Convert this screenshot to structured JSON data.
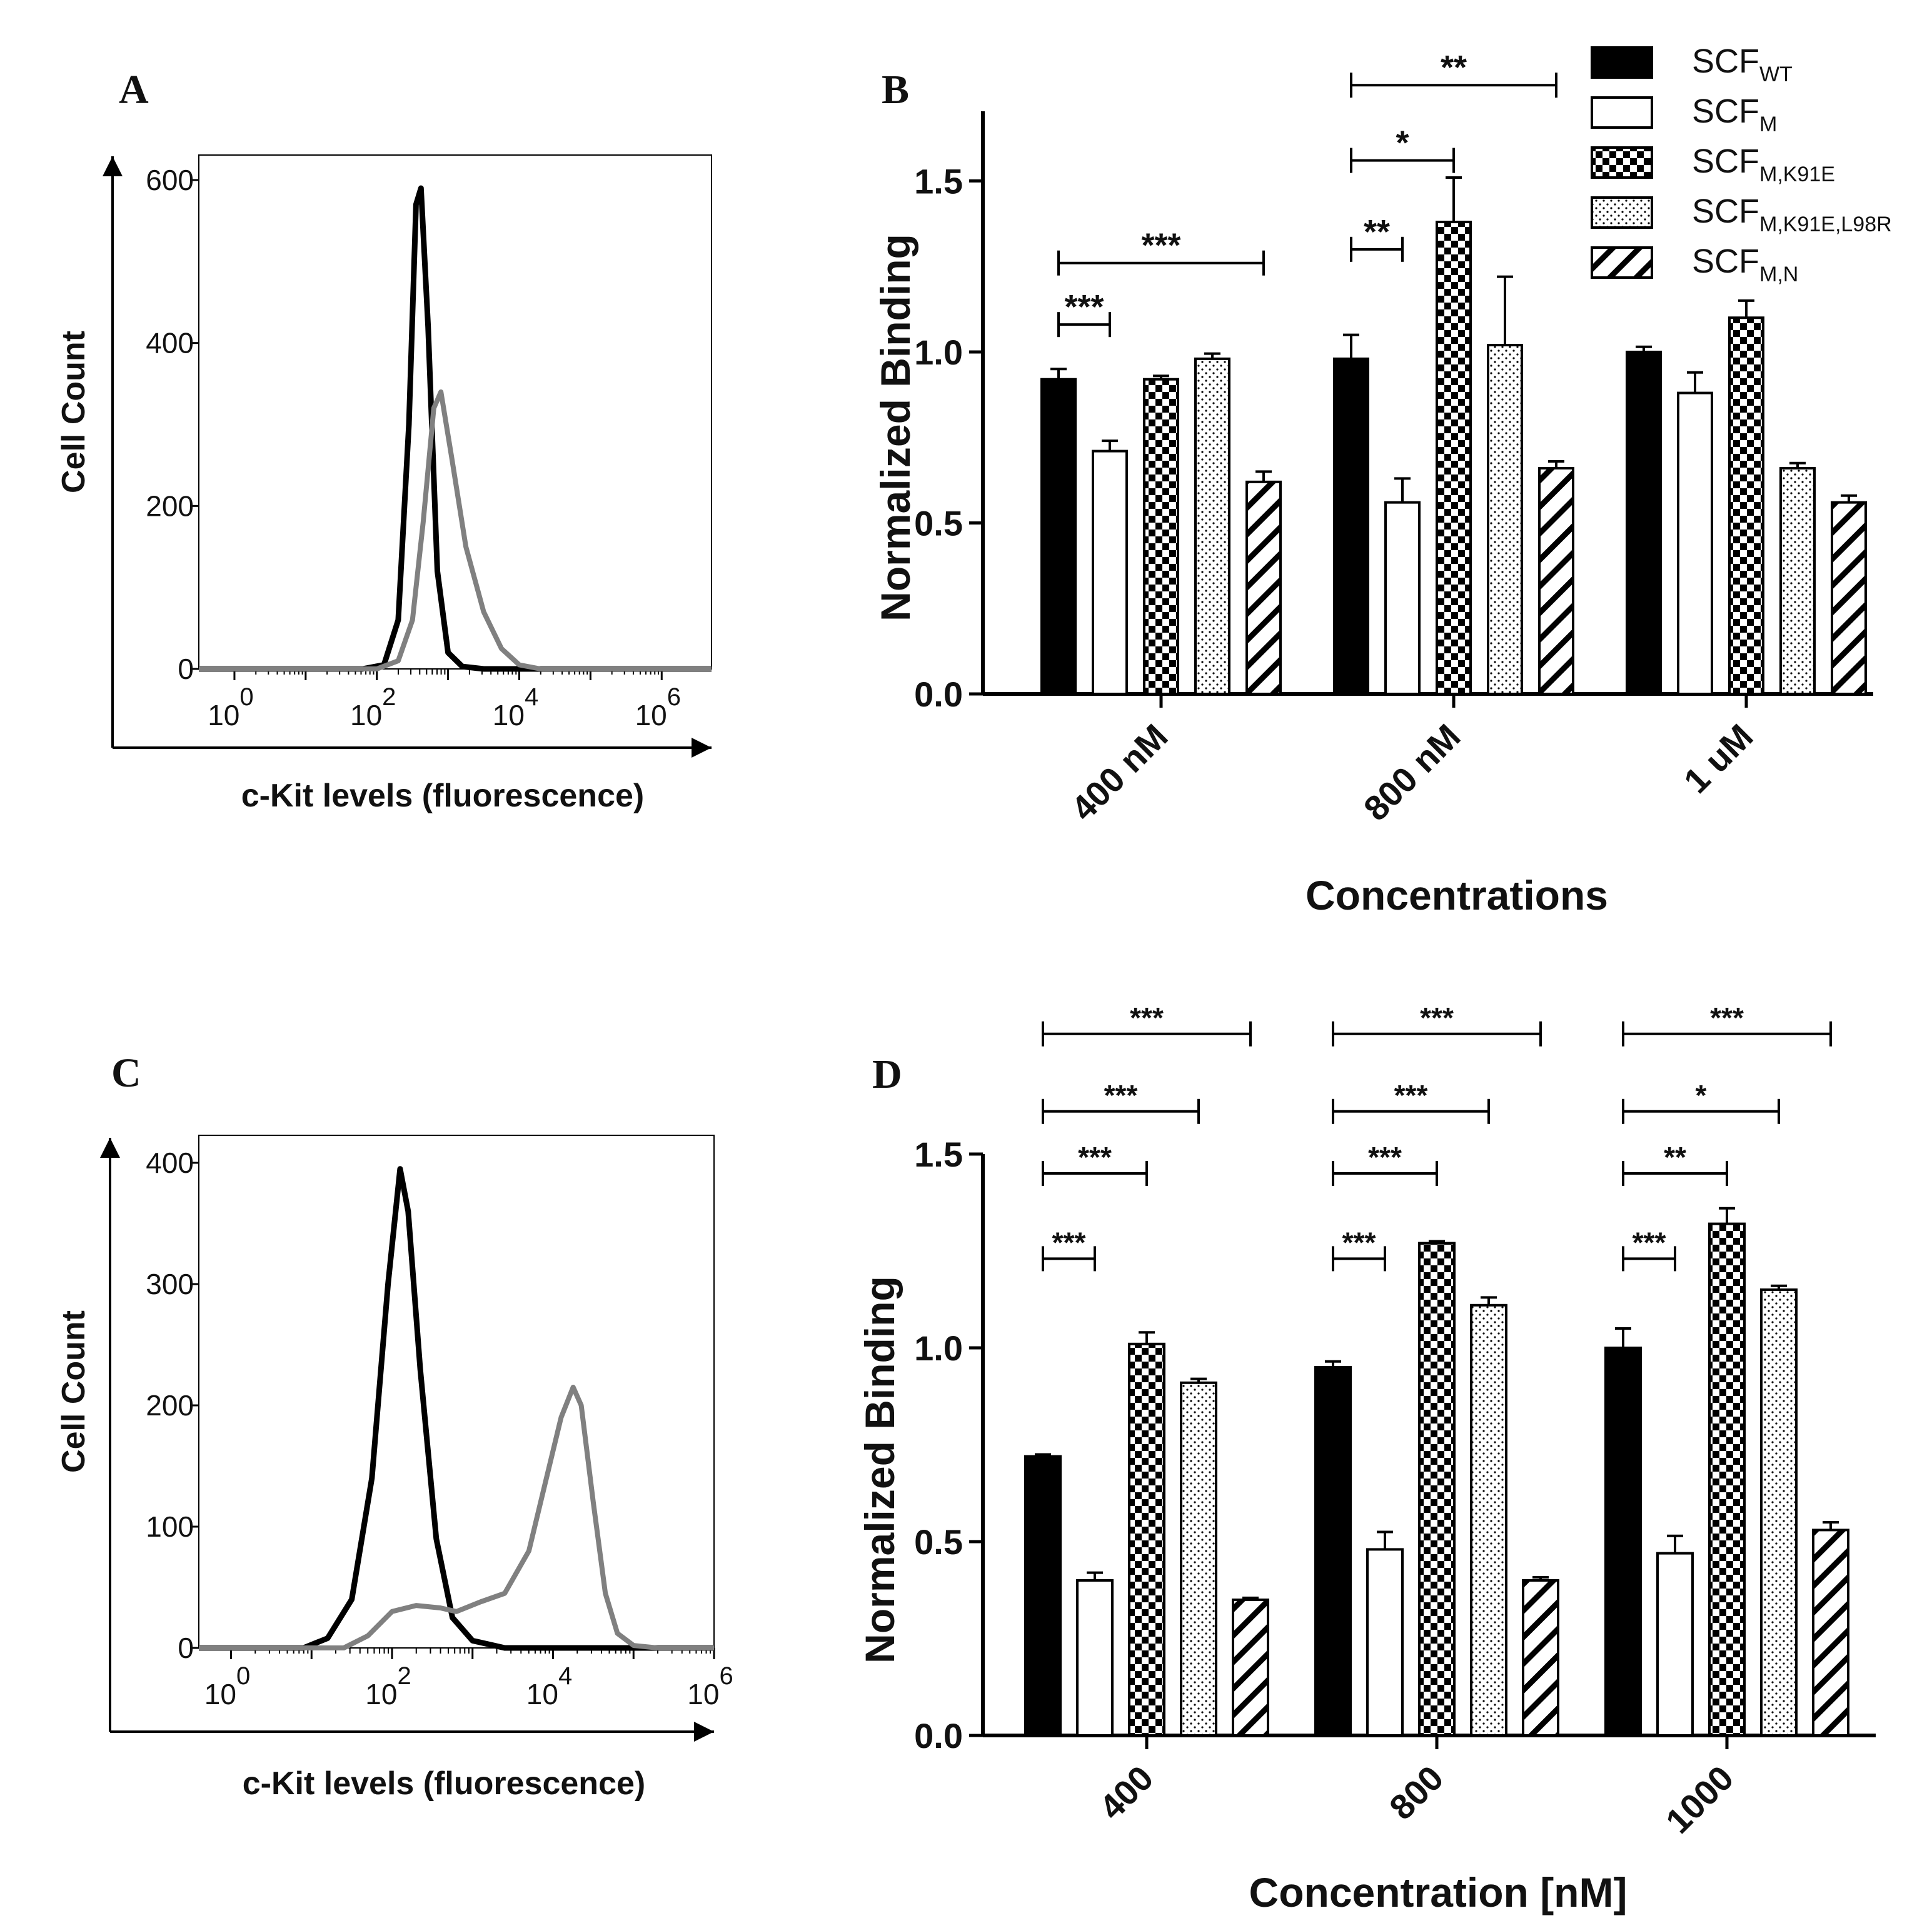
{
  "chart_data": [
    {
      "panel": "A",
      "type": "histogram",
      "xlabel": "c-Kit levels (fluorescence)",
      "ylabel": "Cell Count",
      "yticks": [
        0,
        200,
        400,
        600
      ],
      "ylim": [
        0,
        600
      ],
      "xticks": [
        {
          "base": "10",
          "exp": "0"
        },
        {
          "base": "10",
          "exp": "2"
        },
        {
          "base": "10",
          "exp": "4"
        },
        {
          "base": "10",
          "exp": "6"
        }
      ],
      "xlim_log10": [
        -0.5,
        6.7
      ],
      "series": [
        {
          "name": "black",
          "color": "#000000",
          "points": [
            [
              -0.5,
              0
            ],
            [
              1.8,
              0
            ],
            [
              2.1,
              5
            ],
            [
              2.3,
              60
            ],
            [
              2.45,
              300
            ],
            [
              2.55,
              570
            ],
            [
              2.62,
              590
            ],
            [
              2.72,
              420
            ],
            [
              2.85,
              120
            ],
            [
              3.0,
              20
            ],
            [
              3.2,
              3
            ],
            [
              3.5,
              0
            ],
            [
              6.7,
              0
            ]
          ]
        },
        {
          "name": "gray",
          "color": "#808080",
          "points": [
            [
              -0.5,
              0
            ],
            [
              2.0,
              0
            ],
            [
              2.3,
              10
            ],
            [
              2.5,
              60
            ],
            [
              2.65,
              180
            ],
            [
              2.8,
              320
            ],
            [
              2.9,
              340
            ],
            [
              3.05,
              260
            ],
            [
              3.25,
              150
            ],
            [
              3.5,
              70
            ],
            [
              3.75,
              25
            ],
            [
              4.0,
              5
            ],
            [
              4.3,
              0
            ],
            [
              6.7,
              0
            ]
          ]
        }
      ]
    },
    {
      "panel": "B",
      "type": "bar",
      "title": "",
      "xlabel": "Concentrations",
      "ylabel": "Normalized Binding",
      "ylim": [
        0,
        1.7
      ],
      "yticks": [
        "0.0",
        "0.5",
        "1.0",
        "1.5"
      ],
      "categories": [
        "400 nM",
        "800 nM",
        "1 uM"
      ],
      "series": [
        {
          "name": "SCF_WT",
          "pattern": "solid",
          "values": [
            0.92,
            0.98,
            1.0
          ],
          "errors": [
            0.03,
            0.07,
            0.015
          ]
        },
        {
          "name": "SCF_M",
          "pattern": "white",
          "values": [
            0.71,
            0.56,
            0.88
          ],
          "errors": [
            0.03,
            0.07,
            0.06
          ]
        },
        {
          "name": "SCF_M,K91E",
          "pattern": "checker",
          "values": [
            0.92,
            1.38,
            1.1
          ],
          "errors": [
            0.01,
            0.13,
            0.05
          ]
        },
        {
          "name": "SCF_M,K91E,L98R",
          "pattern": "dots",
          "values": [
            0.98,
            1.02,
            0.66
          ],
          "errors": [
            0.015,
            0.2,
            0.015
          ]
        },
        {
          "name": "SCF_M,N",
          "pattern": "hatch",
          "values": [
            0.62,
            0.66,
            0.56
          ],
          "errors": [
            0.03,
            0.02,
            0.02
          ]
        }
      ],
      "legend": [
        {
          "base": "SCF",
          "sub": "WT",
          "pattern": "solid"
        },
        {
          "base": "SCF",
          "sub": "M",
          "pattern": "white"
        },
        {
          "base": "SCF",
          "sub": "M,K91E",
          "pattern": "checker"
        },
        {
          "base": "SCF",
          "sub": "M,K91E,L98R",
          "pattern": "dots"
        },
        {
          "base": "SCF",
          "sub": "M,N",
          "pattern": "hatch"
        }
      ],
      "significance": [
        {
          "category": 0,
          "from": 0,
          "to": 1,
          "label": "***",
          "level": 1.08
        },
        {
          "category": 0,
          "from": 0,
          "to": 4,
          "label": "***",
          "level": 1.26
        },
        {
          "category": 1,
          "from": 0,
          "to": 1,
          "label": "**",
          "level": 1.3
        },
        {
          "category": 1,
          "from": 0,
          "to": 2,
          "label": "*",
          "level": 1.56
        },
        {
          "category": 1,
          "from": 0,
          "to": 4,
          "label": "**",
          "level": 1.78
        }
      ]
    },
    {
      "panel": "C",
      "type": "histogram",
      "xlabel": "c-Kit levels (fluorescence)",
      "ylabel": "Cell Count",
      "yticks": [
        0,
        100,
        200,
        300,
        400
      ],
      "ylim": [
        0,
        400
      ],
      "xticks": [
        {
          "base": "10",
          "exp": "0"
        },
        {
          "base": "10",
          "exp": "2"
        },
        {
          "base": "10",
          "exp": "4"
        },
        {
          "base": "10",
          "exp": "6"
        }
      ],
      "xlim_log10": [
        -0.4,
        6.0
      ],
      "series": [
        {
          "name": "black",
          "color": "#000000",
          "points": [
            [
              -0.4,
              0
            ],
            [
              0.9,
              0
            ],
            [
              1.2,
              8
            ],
            [
              1.5,
              40
            ],
            [
              1.75,
              140
            ],
            [
              1.95,
              300
            ],
            [
              2.1,
              395
            ],
            [
              2.2,
              360
            ],
            [
              2.35,
              230
            ],
            [
              2.55,
              90
            ],
            [
              2.75,
              25
            ],
            [
              3.0,
              6
            ],
            [
              3.4,
              0
            ],
            [
              6.0,
              0
            ]
          ]
        },
        {
          "name": "gray",
          "color": "#808080",
          "points": [
            [
              -0.4,
              0
            ],
            [
              1.4,
              0
            ],
            [
              1.7,
              10
            ],
            [
              2.0,
              30
            ],
            [
              2.3,
              35
            ],
            [
              2.6,
              33
            ],
            [
              2.8,
              30
            ],
            [
              3.1,
              38
            ],
            [
              3.4,
              45
            ],
            [
              3.7,
              80
            ],
            [
              3.9,
              135
            ],
            [
              4.1,
              190
            ],
            [
              4.25,
              215
            ],
            [
              4.35,
              200
            ],
            [
              4.5,
              120
            ],
            [
              4.65,
              45
            ],
            [
              4.8,
              12
            ],
            [
              5.0,
              2
            ],
            [
              5.3,
              0
            ],
            [
              6.0,
              0
            ]
          ]
        }
      ]
    },
    {
      "panel": "D",
      "type": "bar",
      "title": "",
      "xlabel": "Concentration [nM]",
      "ylabel": "Normalized Binding",
      "ylim": [
        0,
        1.5
      ],
      "yticks": [
        "0.0",
        "0.5",
        "1.0",
        "1.5"
      ],
      "categories": [
        "400",
        "800",
        "1000"
      ],
      "series": [
        {
          "name": "SCF_WT",
          "pattern": "solid",
          "values": [
            0.72,
            0.95,
            1.0
          ],
          "errors": [
            0.005,
            0.015,
            0.05
          ]
        },
        {
          "name": "SCF_M",
          "pattern": "white",
          "values": [
            0.4,
            0.48,
            0.47
          ],
          "errors": [
            0.02,
            0.045,
            0.045
          ]
        },
        {
          "name": "SCF_M,K91E",
          "pattern": "checker",
          "values": [
            1.01,
            1.27,
            1.32
          ],
          "errors": [
            0.03,
            0.005,
            0.04
          ]
        },
        {
          "name": "SCF_M,K91E,L98R",
          "pattern": "dots",
          "values": [
            0.91,
            1.11,
            1.15
          ],
          "errors": [
            0.01,
            0.02,
            0.01
          ]
        },
        {
          "name": "SCF_M,N",
          "pattern": "hatch",
          "values": [
            0.35,
            0.4,
            0.53
          ],
          "errors": [
            0.005,
            0.008,
            0.02
          ]
        }
      ],
      "significance": [
        {
          "category": 0,
          "from": 0,
          "to": 1,
          "label": "***",
          "level": 1.23
        },
        {
          "category": 0,
          "from": 0,
          "to": 2,
          "label": "***",
          "level": 1.45
        },
        {
          "category": 0,
          "from": 0,
          "to": 3,
          "label": "***",
          "level": 1.61
        },
        {
          "category": 0,
          "from": 0,
          "to": 4,
          "label": "***",
          "level": 1.81
        },
        {
          "category": 1,
          "from": 0,
          "to": 1,
          "label": "***",
          "level": 1.23
        },
        {
          "category": 1,
          "from": 0,
          "to": 2,
          "label": "***",
          "level": 1.45
        },
        {
          "category": 1,
          "from": 0,
          "to": 3,
          "label": "***",
          "level": 1.61
        },
        {
          "category": 1,
          "from": 0,
          "to": 4,
          "label": "***",
          "level": 1.81
        },
        {
          "category": 2,
          "from": 0,
          "to": 1,
          "label": "***",
          "level": 1.23
        },
        {
          "category": 2,
          "from": 0,
          "to": 2,
          "label": "**",
          "level": 1.45
        },
        {
          "category": 2,
          "from": 0,
          "to": 3,
          "label": "*",
          "level": 1.61
        },
        {
          "category": 2,
          "from": 0,
          "to": 4,
          "label": "***",
          "level": 1.81
        }
      ]
    }
  ]
}
